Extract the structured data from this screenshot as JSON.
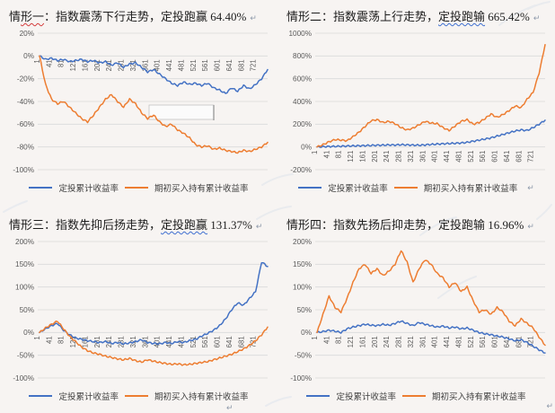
{
  "legend": {
    "dca": "定投累计收益率",
    "buyhold": "期初买入持有累计收益率"
  },
  "marks": {
    "return_glyph": "↵"
  },
  "colors": {
    "dca": "#4472c4",
    "buyhold": "#ed7d31",
    "grid": "#d9d9d9",
    "axis_text": "#595959",
    "title_text": "#1d1d1d",
    "squiggle_red": "#d43c3c",
    "squiggle_blue": "#3f6fd0"
  },
  "chart_data": [
    {
      "type": "line",
      "title": "情形一：指数震荡下行走势，定投跑赢 64.40%",
      "title_parts": [
        {
          "text": "情",
          "wavy": null
        },
        {
          "text": "形一",
          "wavy": "red"
        },
        {
          "text": "：指数震荡下行走势，定投跑赢 64.40%",
          "wavy": null
        }
      ],
      "y_ticks": [
        "20%",
        "0%",
        "-20%",
        "-40%",
        "-60%",
        "-80%",
        "-100%"
      ],
      "y_max": 20,
      "y_min": -100,
      "x_ticks": [
        1,
        41,
        81,
        121,
        161,
        201,
        241,
        281,
        321,
        361,
        401,
        441,
        481,
        521,
        561,
        601,
        641,
        681,
        721
      ],
      "x_start": 1,
      "x_step": 20,
      "x_end": 761,
      "empty_box": {
        "x": 166,
        "y": 88,
        "w": 72,
        "h": 16
      },
      "series": [
        {
          "name": "定投累计收益率",
          "color_key": "dca",
          "values": [
            0,
            -3,
            -2,
            -4,
            -3,
            -5,
            -4,
            -3,
            -5,
            -4,
            -6,
            -5,
            -8,
            -6,
            -10,
            -7,
            -6,
            -10,
            -14,
            -12,
            -16,
            -20,
            -24,
            -26,
            -23,
            -25,
            -24,
            -26,
            -24,
            -28,
            -30,
            -33,
            -28,
            -31,
            -26,
            -29,
            -25,
            -20,
            -12
          ]
        },
        {
          "name": "期初买入持有累计收益率",
          "color_key": "buyhold",
          "values": [
            0,
            -25,
            -38,
            -42,
            -40,
            -45,
            -50,
            -55,
            -58,
            -52,
            -45,
            -38,
            -34,
            -40,
            -45,
            -38,
            -42,
            -50,
            -55,
            -52,
            -58,
            -62,
            -60,
            -65,
            -68,
            -72,
            -78,
            -80,
            -79,
            -82,
            -81,
            -83,
            -84,
            -85,
            -83,
            -84,
            -82,
            -80,
            -76
          ]
        }
      ]
    },
    {
      "type": "line",
      "title": "情形二：指数震荡上行走势，定投跑输 665.42%",
      "title_parts": [
        {
          "text": "情形二：指数震荡上行走势，",
          "wavy": null
        },
        {
          "text": "定投跑输",
          "wavy": "blue"
        },
        {
          "text": " 665.42%",
          "wavy": null
        }
      ],
      "y_ticks": [
        "1000%",
        "800%",
        "600%",
        "400%",
        "200%",
        "0%",
        "-200%"
      ],
      "y_max": 1000,
      "y_min": -200,
      "x_ticks": [
        1,
        41,
        81,
        121,
        161,
        201,
        241,
        281,
        321,
        361,
        401,
        441,
        481,
        521,
        561,
        601,
        641,
        681,
        721
      ],
      "x_start": 1,
      "x_step": 20,
      "x_end": 761,
      "series": [
        {
          "name": "定投累计收益率",
          "color_key": "dca",
          "values": [
            0,
            2,
            4,
            5,
            6,
            8,
            9,
            10,
            12,
            13,
            15,
            16,
            18,
            17,
            20,
            18,
            16,
            15,
            18,
            22,
            25,
            28,
            30,
            32,
            35,
            40,
            50,
            60,
            70,
            80,
            95,
            110,
            125,
            140,
            150,
            145,
            170,
            200,
            235
          ]
        },
        {
          "name": "期初买入持有累计收益率",
          "color_key": "buyhold",
          "values": [
            0,
            20,
            45,
            65,
            60,
            55,
            90,
            130,
            180,
            230,
            240,
            215,
            225,
            205,
            170,
            150,
            165,
            195,
            225,
            210,
            205,
            170,
            145,
            185,
            225,
            240,
            200,
            215,
            250,
            290,
            260,
            285,
            320,
            360,
            345,
            420,
            480,
            650,
            900
          ]
        }
      ]
    },
    {
      "type": "line",
      "title": "情形三：指数先抑后扬走势，定投跑赢 131.37%",
      "title_parts": [
        {
          "text": "情形三：指数先抑后扬走势，",
          "wavy": null
        },
        {
          "text": "定投跑赢",
          "wavy": "blue"
        },
        {
          "text": " 131.37%",
          "wavy": null
        }
      ],
      "y_ticks": [
        "200%",
        "150%",
        "100%",
        "50%",
        "0%",
        "-50%",
        "-100%"
      ],
      "y_max": 200,
      "y_min": -100,
      "x_ticks": [
        1,
        41,
        81,
        121,
        161,
        201,
        241,
        281,
        321,
        361,
        401,
        441,
        481,
        521,
        561,
        601,
        641,
        681,
        721
      ],
      "x_start": 1,
      "x_step": 20,
      "x_end": 761,
      "series": [
        {
          "name": "定投累计收益率",
          "color_key": "dca",
          "values": [
            0,
            8,
            15,
            20,
            5,
            -5,
            -12,
            -15,
            -18,
            -20,
            -22,
            -20,
            -24,
            -22,
            -25,
            -23,
            -20,
            -16,
            -22,
            -24,
            -25,
            -22,
            -24,
            -20,
            -22,
            -18,
            -15,
            -8,
            -2,
            5,
            15,
            30,
            50,
            65,
            60,
            75,
            90,
            155,
            145
          ]
        },
        {
          "name": "期初买入持有累计收益率",
          "color_key": "buyhold",
          "values": [
            0,
            10,
            18,
            25,
            8,
            -8,
            -20,
            -32,
            -40,
            -45,
            -48,
            -52,
            -55,
            -58,
            -60,
            -57,
            -62,
            -65,
            -60,
            -63,
            -66,
            -68,
            -70,
            -69,
            -71,
            -70,
            -68,
            -66,
            -64,
            -60,
            -56,
            -52,
            -48,
            -42,
            -36,
            -28,
            -18,
            -5,
            12
          ]
        }
      ]
    },
    {
      "type": "line",
      "title": "情形四：指数先扬后抑走势，定投跑输 16.96%",
      "title_parts": [
        {
          "text": "情形四：指数先扬后抑走势，定投跑输 16.96%",
          "wavy": null
        }
      ],
      "y_ticks": [
        "200%",
        "150%",
        "100%",
        "50%",
        "0%",
        "-50%",
        "-100%"
      ],
      "y_max": 200,
      "y_min": -100,
      "x_ticks": [
        1,
        41,
        81,
        121,
        161,
        201,
        241,
        281,
        321,
        361,
        401,
        441,
        481,
        521,
        561,
        601,
        641,
        681,
        721
      ],
      "x_start": 1,
      "x_step": 20,
      "x_end": 761,
      "series": [
        {
          "name": "定投累计收益率",
          "color_key": "dca",
          "values": [
            0,
            2,
            5,
            3,
            0,
            8,
            12,
            15,
            18,
            16,
            15,
            18,
            16,
            20,
            25,
            20,
            15,
            22,
            18,
            15,
            12,
            14,
            10,
            12,
            8,
            10,
            5,
            0,
            -3,
            -5,
            -8,
            -10,
            -14,
            -18,
            -16,
            -22,
            -30,
            -38,
            -45
          ]
        },
        {
          "name": "期初买入持有累计收益率",
          "color_key": "buyhold",
          "values": [
            0,
            40,
            80,
            55,
            45,
            75,
            110,
            140,
            150,
            130,
            140,
            125,
            135,
            150,
            180,
            155,
            110,
            140,
            160,
            150,
            130,
            120,
            100,
            110,
            90,
            100,
            70,
            45,
            50,
            40,
            55,
            45,
            25,
            15,
            30,
            20,
            10,
            -10,
            -28
          ]
        }
      ]
    }
  ]
}
